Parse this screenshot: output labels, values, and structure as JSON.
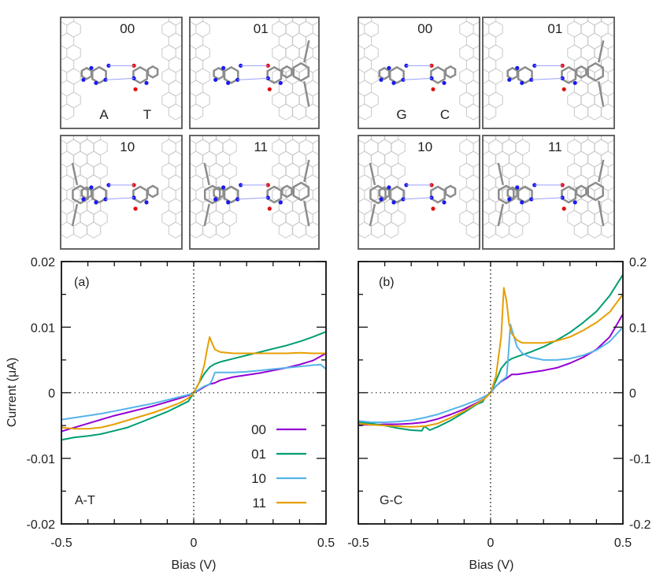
{
  "figure": {
    "structure_panels": [
      {
        "group": "A-T",
        "base_labels": [
          "A",
          "T"
        ],
        "configs": [
          "00",
          "01",
          "10",
          "11"
        ]
      },
      {
        "group": "G-C",
        "base_labels": [
          "G",
          "C"
        ],
        "configs": [
          "00",
          "01",
          "10",
          "11"
        ]
      }
    ]
  },
  "colors": {
    "00": "#9400d3",
    "01": "#009e73",
    "10": "#56b4e9",
    "11": "#e69f00",
    "nitrogen": "#1a1aee",
    "oxygen": "#e01010",
    "carbon": "#8c8c8c",
    "graphene": "#c8c8c8"
  },
  "chart_data": [
    {
      "type": "line",
      "panel_label": "(a)",
      "annotation": "A-T",
      "title": "",
      "xlabel": "Bias (V)",
      "ylabel": "Current (μA)",
      "xlim": [
        -0.5,
        0.5
      ],
      "ylim": [
        -0.02,
        0.02
      ],
      "x_ticks": [
        "-0.5",
        "0",
        "0.5"
      ],
      "x_tick_values": [
        -0.5,
        0,
        0.5
      ],
      "y_ticks": [
        "0.02",
        "0.01",
        "0",
        "-0.01",
        "-0.02"
      ],
      "y_tick_values": [
        0.02,
        0.01,
        0,
        -0.01,
        -0.02
      ],
      "y_axis_side": "left",
      "zero_lines": "dotted",
      "legend": {
        "placement": "bottom-right",
        "entries": [
          "00",
          "01",
          "10",
          "11"
        ]
      },
      "series": [
        {
          "name": "00",
          "x": [
            -0.5,
            -0.45,
            -0.4,
            -0.35,
            -0.3,
            -0.25,
            -0.2,
            -0.15,
            -0.1,
            -0.05,
            -0.02,
            0,
            0.02,
            0.04,
            0.06,
            0.08,
            0.1,
            0.15,
            0.2,
            0.25,
            0.3,
            0.35,
            0.4,
            0.45,
            0.5
          ],
          "y": [
            -0.0059,
            -0.0053,
            -0.0047,
            -0.0041,
            -0.0035,
            -0.003,
            -0.0025,
            -0.002,
            -0.0014,
            -0.0008,
            -0.0004,
            0,
            0.0004,
            0.0009,
            0.0013,
            0.0015,
            0.0019,
            0.0024,
            0.0027,
            0.003,
            0.0034,
            0.0038,
            0.0043,
            0.0049,
            0.006
          ]
        },
        {
          "name": "01",
          "x": [
            -0.5,
            -0.45,
            -0.4,
            -0.35,
            -0.3,
            -0.25,
            -0.2,
            -0.15,
            -0.1,
            -0.05,
            -0.02,
            0,
            0.02,
            0.04,
            0.06,
            0.08,
            0.1,
            0.15,
            0.2,
            0.25,
            0.3,
            0.35,
            0.4,
            0.45,
            0.5
          ],
          "y": [
            -0.0072,
            -0.0068,
            -0.0066,
            -0.0063,
            -0.0058,
            -0.0053,
            -0.0045,
            -0.0037,
            -0.0029,
            -0.0019,
            -0.0013,
            0,
            0.0015,
            0.0029,
            0.0039,
            0.0044,
            0.0047,
            0.0052,
            0.0057,
            0.0062,
            0.0067,
            0.0072,
            0.0078,
            0.0085,
            0.0093
          ]
        },
        {
          "name": "10",
          "x": [
            -0.5,
            -0.45,
            -0.4,
            -0.35,
            -0.3,
            -0.25,
            -0.2,
            -0.15,
            -0.1,
            -0.05,
            -0.02,
            0,
            0.02,
            0.04,
            0.06,
            0.07,
            0.08,
            0.1,
            0.15,
            0.2,
            0.25,
            0.3,
            0.35,
            0.4,
            0.45,
            0.48,
            0.5
          ],
          "y": [
            -0.0041,
            -0.0038,
            -0.0035,
            -0.0032,
            -0.0028,
            -0.0024,
            -0.002,
            -0.0016,
            -0.0011,
            -0.0006,
            -0.0003,
            0,
            0.0005,
            0.001,
            0.0013,
            0.002,
            0.0031,
            0.0031,
            0.0031,
            0.0032,
            0.0034,
            0.0036,
            0.0038,
            0.004,
            0.0042,
            0.0043,
            0.0036
          ]
        },
        {
          "name": "11",
          "x": [
            -0.5,
            -0.45,
            -0.4,
            -0.35,
            -0.3,
            -0.25,
            -0.2,
            -0.15,
            -0.1,
            -0.05,
            -0.02,
            0,
            0.02,
            0.04,
            0.05,
            0.06,
            0.07,
            0.08,
            0.1,
            0.15,
            0.2,
            0.25,
            0.3,
            0.35,
            0.4,
            0.45,
            0.5
          ],
          "y": [
            -0.0053,
            -0.0055,
            -0.0055,
            -0.0053,
            -0.0048,
            -0.0042,
            -0.0036,
            -0.003,
            -0.0023,
            -0.0015,
            -0.0008,
            0,
            0.0015,
            0.0042,
            0.0065,
            0.0085,
            0.0075,
            0.0066,
            0.0062,
            0.006,
            0.006,
            0.006,
            0.006,
            0.006,
            0.0061,
            0.006,
            0.006
          ]
        }
      ]
    },
    {
      "type": "line",
      "panel_label": "(b)",
      "annotation": "G-C",
      "title": "",
      "xlabel": "Bias (V)",
      "ylabel": "",
      "xlim": [
        -0.5,
        0.5
      ],
      "ylim": [
        -0.2,
        0.2
      ],
      "x_ticks": [
        "-0.5",
        "0",
        "0.5"
      ],
      "x_tick_values": [
        -0.5,
        0,
        0.5
      ],
      "y_ticks": [
        "0.2",
        "0.1",
        "0",
        "-0.1",
        "-0.2"
      ],
      "y_tick_values": [
        0.2,
        0.1,
        0,
        -0.1,
        -0.2
      ],
      "y_axis_side": "right",
      "zero_lines": "dotted",
      "series": [
        {
          "name": "00",
          "x": [
            -0.5,
            -0.45,
            -0.4,
            -0.35,
            -0.3,
            -0.25,
            -0.2,
            -0.15,
            -0.1,
            -0.05,
            -0.02,
            0,
            0.02,
            0.04,
            0.06,
            0.08,
            0.1,
            0.15,
            0.2,
            0.25,
            0.3,
            0.35,
            0.4,
            0.45,
            0.5
          ],
          "y": [
            -0.049,
            -0.049,
            -0.048,
            -0.048,
            -0.047,
            -0.045,
            -0.04,
            -0.033,
            -0.025,
            -0.015,
            -0.008,
            0,
            0.01,
            0.017,
            0.022,
            0.028,
            0.028,
            0.031,
            0.034,
            0.038,
            0.045,
            0.054,
            0.066,
            0.085,
            0.12
          ]
        },
        {
          "name": "01",
          "x": [
            -0.5,
            -0.45,
            -0.4,
            -0.35,
            -0.3,
            -0.26,
            -0.25,
            -0.23,
            -0.2,
            -0.15,
            -0.1,
            -0.05,
            -0.03,
            -0.02,
            0,
            0.02,
            0.04,
            0.06,
            0.08,
            0.1,
            0.15,
            0.2,
            0.25,
            0.3,
            0.35,
            0.4,
            0.45,
            0.5
          ],
          "y": [
            -0.045,
            -0.047,
            -0.05,
            -0.054,
            -0.057,
            -0.058,
            -0.051,
            -0.057,
            -0.052,
            -0.042,
            -0.03,
            -0.017,
            -0.014,
            -0.006,
            0,
            0.018,
            0.037,
            0.047,
            0.052,
            0.055,
            0.062,
            0.07,
            0.08,
            0.092,
            0.107,
            0.124,
            0.148,
            0.18
          ]
        },
        {
          "name": "10",
          "x": [
            -0.5,
            -0.45,
            -0.4,
            -0.35,
            -0.3,
            -0.25,
            -0.2,
            -0.15,
            -0.1,
            -0.05,
            -0.02,
            0,
            0.02,
            0.04,
            0.06,
            0.065,
            0.075,
            0.09,
            0.1,
            0.12,
            0.15,
            0.2,
            0.25,
            0.3,
            0.35,
            0.4,
            0.45,
            0.5
          ],
          "y": [
            -0.043,
            -0.045,
            -0.045,
            -0.044,
            -0.042,
            -0.038,
            -0.033,
            -0.026,
            -0.019,
            -0.011,
            -0.005,
            0,
            0.01,
            0.018,
            0.024,
            0.045,
            0.104,
            0.083,
            0.07,
            0.06,
            0.054,
            0.05,
            0.05,
            0.052,
            0.057,
            0.065,
            0.078,
            0.1
          ]
        },
        {
          "name": "11",
          "x": [
            -0.5,
            -0.45,
            -0.4,
            -0.35,
            -0.3,
            -0.25,
            -0.2,
            -0.15,
            -0.1,
            -0.05,
            -0.02,
            0,
            0.02,
            0.04,
            0.05,
            0.06,
            0.07,
            0.08,
            0.1,
            0.12,
            0.15,
            0.2,
            0.25,
            0.3,
            0.35,
            0.4,
            0.45,
            0.5
          ],
          "y": [
            -0.047,
            -0.049,
            -0.05,
            -0.051,
            -0.052,
            -0.051,
            -0.047,
            -0.038,
            -0.028,
            -0.016,
            -0.008,
            0,
            0.025,
            0.085,
            0.16,
            0.14,
            0.105,
            0.09,
            0.08,
            0.076,
            0.076,
            0.076,
            0.079,
            0.085,
            0.095,
            0.107,
            0.123,
            0.15
          ]
        }
      ]
    }
  ]
}
